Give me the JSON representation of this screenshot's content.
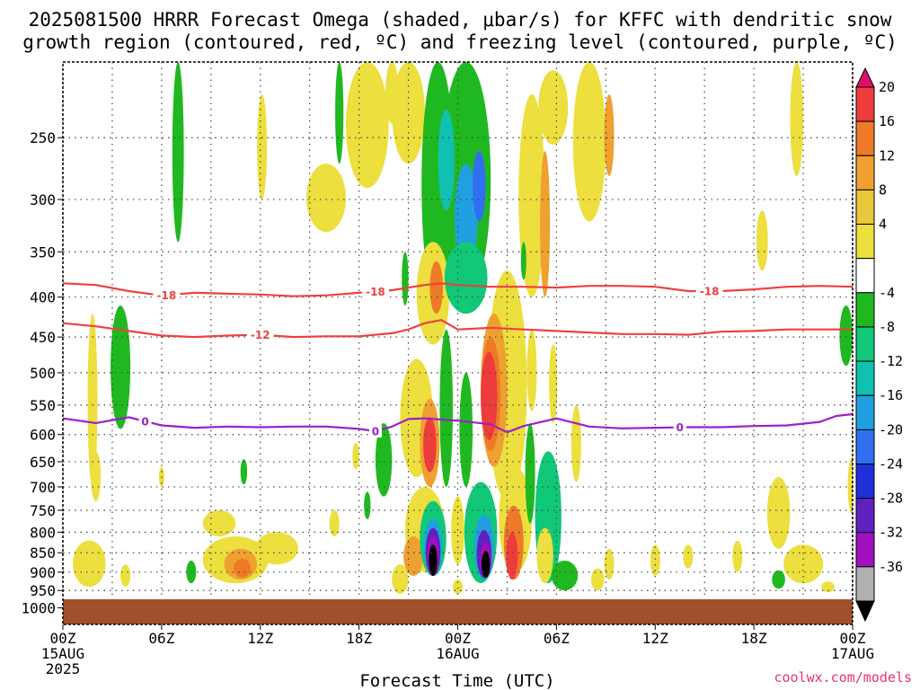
{
  "title": {
    "line1": "2025081500 HRRR Forecast Omega (shaded, μbar/s) for KFFC with dendritic snow",
    "line2": "growth region (contoured, red, ºC) and freezing level (contoured, purple, ºC)"
  },
  "credit": "coolwx.com/models",
  "chart_data": {
    "type": "heatmap",
    "xlabel": "Forecast Time (UTC)",
    "ylabel": "",
    "x_unit": "hours from 2025-08-15 00Z",
    "xlim": [
      0,
      48
    ],
    "y_scale": "log",
    "ylim": [
      1050,
      200
    ],
    "y_ticks": [
      250,
      300,
      350,
      400,
      450,
      500,
      550,
      600,
      650,
      700,
      750,
      800,
      850,
      900,
      950,
      1000
    ],
    "x_ticks": [
      {
        "x": 0,
        "lines": [
          "00Z",
          "15AUG",
          "2025"
        ]
      },
      {
        "x": 6,
        "lines": [
          "06Z"
        ]
      },
      {
        "x": 12,
        "lines": [
          "12Z"
        ]
      },
      {
        "x": 18,
        "lines": [
          "18Z"
        ]
      },
      {
        "x": 24,
        "lines": [
          "00Z",
          "16AUG"
        ]
      },
      {
        "x": 30,
        "lines": [
          "06Z"
        ]
      },
      {
        "x": 36,
        "lines": [
          "12Z"
        ]
      },
      {
        "x": 42,
        "lines": [
          "18Z"
        ]
      },
      {
        "x": 48,
        "lines": [
          "00Z",
          "17AUG"
        ]
      }
    ],
    "grid": true,
    "colorbar": {
      "labels": [
        "20",
        "16",
        "12",
        "8",
        "4",
        "-4",
        "-8",
        "-12",
        "-16",
        "-20",
        "-24",
        "-28",
        "-32",
        "-36"
      ],
      "colors": [
        "#e0106a",
        "#ee3c3c",
        "#ee7a28",
        "#eea030",
        "#e8c83a",
        "#ecdf3e",
        "#ffffff",
        "#20b820",
        "#10c878",
        "#10c0b0",
        "#20a0e0",
        "#3070f0",
        "#2030d8",
        "#6020c0",
        "#a010c0",
        "#b0b0b0",
        "#000000"
      ]
    },
    "ground": {
      "pressure_top": 975,
      "color": "#a0502a"
    },
    "omega_patches": [
      {
        "x": 7.0,
        "p": 270,
        "rx": 0.35,
        "rp": 70,
        "value": -6
      },
      {
        "x": 12.1,
        "p": 260,
        "rx": 0.3,
        "rp": 40,
        "value": 5
      },
      {
        "x": 16.8,
        "p": 230,
        "rx": 0.25,
        "rp": 40,
        "value": -6
      },
      {
        "x": 16.0,
        "p": 300,
        "rx": 1.2,
        "rp": 30,
        "value": 5
      },
      {
        "x": 18.5,
        "p": 230,
        "rx": 1.3,
        "rp": 60,
        "value": 5
      },
      {
        "x": 21.0,
        "p": 230,
        "rx": 1.0,
        "rp": 40,
        "value": 5
      },
      {
        "x": 20.0,
        "p": 215,
        "rx": 0.4,
        "rp": 25,
        "value": 7
      },
      {
        "x": 22.8,
        "p": 300,
        "rx": 1.0,
        "rp": 110,
        "value": -7
      },
      {
        "x": 24.5,
        "p": 300,
        "rx": 1.5,
        "rp": 100,
        "value": -7
      },
      {
        "x": 23.3,
        "p": 270,
        "rx": 0.5,
        "rp": 40,
        "value": -14
      },
      {
        "x": 24.5,
        "p": 320,
        "rx": 0.7,
        "rp": 50,
        "value": -16
      },
      {
        "x": 25.3,
        "p": 290,
        "rx": 0.4,
        "rp": 30,
        "value": -21
      },
      {
        "x": 28.5,
        "p": 310,
        "rx": 0.8,
        "rp": 90,
        "value": 6
      },
      {
        "x": 29.3,
        "p": 330,
        "rx": 0.3,
        "rp": 70,
        "value": 10
      },
      {
        "x": 32.0,
        "p": 260,
        "rx": 1.0,
        "rp": 60,
        "value": 5
      },
      {
        "x": 33.2,
        "p": 250,
        "rx": 0.3,
        "rp": 30,
        "value": 9
      },
      {
        "x": 29.8,
        "p": 230,
        "rx": 0.9,
        "rp": 25,
        "value": 5
      },
      {
        "x": 42.5,
        "p": 340,
        "rx": 0.35,
        "rp": 30,
        "value": 5
      },
      {
        "x": 44.6,
        "p": 240,
        "rx": 0.4,
        "rp": 40,
        "value": 5
      },
      {
        "x": 28.0,
        "p": 360,
        "rx": 0.15,
        "rp": 20,
        "value": -6
      },
      {
        "x": 20.8,
        "p": 380,
        "rx": 0.2,
        "rp": 30,
        "value": -7
      },
      {
        "x": 22.5,
        "p": 400,
        "rx": 1.0,
        "rp": 60,
        "value": 6
      },
      {
        "x": 22.7,
        "p": 390,
        "rx": 0.4,
        "rp": 30,
        "value": 12
      },
      {
        "x": 24.5,
        "p": 380,
        "rx": 1.3,
        "rp": 40,
        "value": -8
      },
      {
        "x": 3.5,
        "p": 500,
        "rx": 0.6,
        "rp": 90,
        "value": -7
      },
      {
        "x": 1.8,
        "p": 560,
        "rx": 0.3,
        "rp": 140,
        "value": 5
      },
      {
        "x": 47.6,
        "p": 450,
        "rx": 0.4,
        "rp": 40,
        "value": -6
      },
      {
        "x": 48.0,
        "p": 700,
        "rx": 0.3,
        "rp": 60,
        "value": 5
      },
      {
        "x": 27.0,
        "p": 550,
        "rx": 1.2,
        "rp": 180,
        "value": 6
      },
      {
        "x": 26.2,
        "p": 540,
        "rx": 0.8,
        "rp": 120,
        "value": 10
      },
      {
        "x": 26.0,
        "p": 540,
        "rx": 0.6,
        "rp": 90,
        "value": 15
      },
      {
        "x": 25.9,
        "p": 540,
        "rx": 0.5,
        "rp": 70,
        "value": 19
      },
      {
        "x": 28.5,
        "p": 500,
        "rx": 0.3,
        "rp": 60,
        "value": 5
      },
      {
        "x": 21.5,
        "p": 580,
        "rx": 1.0,
        "rp": 100,
        "value": 6
      },
      {
        "x": 22.3,
        "p": 620,
        "rx": 0.6,
        "rp": 80,
        "value": 11
      },
      {
        "x": 22.3,
        "p": 620,
        "rx": 0.4,
        "rp": 50,
        "value": 18
      },
      {
        "x": 23.3,
        "p": 570,
        "rx": 0.4,
        "rp": 130,
        "value": -7
      },
      {
        "x": 24.5,
        "p": 600,
        "rx": 0.4,
        "rp": 100,
        "value": -7
      },
      {
        "x": 19.5,
        "p": 650,
        "rx": 0.5,
        "rp": 70,
        "value": -6
      },
      {
        "x": 17.8,
        "p": 640,
        "rx": 0.2,
        "rp": 25,
        "value": 5
      },
      {
        "x": 11.0,
        "p": 670,
        "rx": 0.2,
        "rp": 25,
        "value": -6
      },
      {
        "x": 6.0,
        "p": 680,
        "rx": 0.15,
        "rp": 20,
        "value": 5
      },
      {
        "x": 2.0,
        "p": 680,
        "rx": 0.3,
        "rp": 50,
        "value": 5
      },
      {
        "x": 18.5,
        "p": 740,
        "rx": 0.2,
        "rp": 30,
        "value": -6
      },
      {
        "x": 22.0,
        "p": 800,
        "rx": 1.2,
        "rp": 100,
        "value": 6
      },
      {
        "x": 21.3,
        "p": 860,
        "rx": 0.6,
        "rp": 50,
        "value": 10
      },
      {
        "x": 22.5,
        "p": 820,
        "rx": 0.8,
        "rp": 90,
        "value": -8
      },
      {
        "x": 22.5,
        "p": 840,
        "rx": 0.55,
        "rp": 70,
        "value": -18
      },
      {
        "x": 22.5,
        "p": 850,
        "rx": 0.45,
        "rp": 60,
        "value": -26
      },
      {
        "x": 22.5,
        "p": 860,
        "rx": 0.35,
        "rp": 50,
        "value": -30
      },
      {
        "x": 22.5,
        "p": 870,
        "rx": 0.25,
        "rp": 40,
        "value": -38
      },
      {
        "x": 24.0,
        "p": 800,
        "rx": 0.4,
        "rp": 80,
        "value": 6
      },
      {
        "x": 25.4,
        "p": 810,
        "rx": 1.0,
        "rp": 120,
        "value": -8
      },
      {
        "x": 25.6,
        "p": 840,
        "rx": 0.6,
        "rp": 80,
        "value": -16
      },
      {
        "x": 25.6,
        "p": 855,
        "rx": 0.45,
        "rp": 60,
        "value": -24
      },
      {
        "x": 25.7,
        "p": 870,
        "rx": 0.35,
        "rp": 45,
        "value": -31
      },
      {
        "x": 25.7,
        "p": 880,
        "rx": 0.25,
        "rp": 35,
        "value": -38
      },
      {
        "x": 27.5,
        "p": 780,
        "rx": 1.0,
        "rp": 120,
        "value": 7
      },
      {
        "x": 27.4,
        "p": 830,
        "rx": 0.6,
        "rp": 90,
        "value": 13
      },
      {
        "x": 27.3,
        "p": 860,
        "rx": 0.35,
        "rp": 60,
        "value": 19
      },
      {
        "x": 28.4,
        "p": 680,
        "rx": 0.3,
        "rp": 100,
        "value": -6
      },
      {
        "x": 29.5,
        "p": 780,
        "rx": 0.8,
        "rp": 150,
        "value": -8
      },
      {
        "x": 29.3,
        "p": 860,
        "rx": 0.5,
        "rp": 70,
        "value": 6
      },
      {
        "x": 10.5,
        "p": 870,
        "rx": 2.0,
        "rp": 60,
        "value": 5
      },
      {
        "x": 10.8,
        "p": 880,
        "rx": 1.0,
        "rp": 40,
        "value": 9
      },
      {
        "x": 10.9,
        "p": 890,
        "rx": 0.5,
        "rp": 25,
        "value": 13
      },
      {
        "x": 13.0,
        "p": 840,
        "rx": 1.3,
        "rp": 40,
        "value": 5
      },
      {
        "x": 9.5,
        "p": 780,
        "rx": 1.0,
        "rp": 30,
        "value": 5
      },
      {
        "x": 1.6,
        "p": 880,
        "rx": 1.0,
        "rp": 60,
        "value": 5
      },
      {
        "x": 3.8,
        "p": 910,
        "rx": 0.3,
        "rp": 30,
        "value": 5
      },
      {
        "x": 7.8,
        "p": 900,
        "rx": 0.3,
        "rp": 30,
        "value": -6
      },
      {
        "x": 16.5,
        "p": 780,
        "rx": 0.3,
        "rp": 30,
        "value": 5
      },
      {
        "x": 33.2,
        "p": 880,
        "rx": 0.3,
        "rp": 40,
        "value": 5
      },
      {
        "x": 36.0,
        "p": 870,
        "rx": 0.3,
        "rp": 40,
        "value": 5
      },
      {
        "x": 38.0,
        "p": 860,
        "rx": 0.3,
        "rp": 30,
        "value": 5
      },
      {
        "x": 41.0,
        "p": 860,
        "rx": 0.3,
        "rp": 40,
        "value": 5
      },
      {
        "x": 43.5,
        "p": 760,
        "rx": 0.7,
        "rp": 80,
        "value": 5
      },
      {
        "x": 45.0,
        "p": 880,
        "rx": 1.2,
        "rp": 50,
        "value": 5
      },
      {
        "x": 43.5,
        "p": 920,
        "rx": 0.4,
        "rp": 25,
        "value": -6
      },
      {
        "x": 46.5,
        "p": 940,
        "rx": 0.4,
        "rp": 15,
        "value": 5
      },
      {
        "x": 32.5,
        "p": 920,
        "rx": 0.4,
        "rp": 30,
        "value": 5
      },
      {
        "x": 20.5,
        "p": 920,
        "rx": 0.5,
        "rp": 40,
        "value": 5
      },
      {
        "x": 24.0,
        "p": 940,
        "rx": 0.3,
        "rp": 20,
        "value": 5
      },
      {
        "x": 30.5,
        "p": 910,
        "rx": 0.8,
        "rp": 40,
        "value": -7
      },
      {
        "x": 31.2,
        "p": 620,
        "rx": 0.3,
        "rp": 70,
        "value": 5
      },
      {
        "x": 29.8,
        "p": 520,
        "rx": 0.25,
        "rp": 60,
        "value": 5
      }
    ],
    "contours": [
      {
        "name": "-18",
        "color": "#ee4040",
        "label": "-18",
        "x": [
          0,
          2,
          4,
          6,
          8,
          10,
          12,
          14,
          16,
          18,
          20,
          22,
          23,
          24,
          26,
          28,
          30,
          32,
          34,
          36,
          38,
          40,
          42,
          44,
          46,
          48
        ],
        "p": [
          384,
          386,
          393,
          398,
          395,
          396,
          397,
          399,
          398,
          395,
          392,
          386,
          384,
          386,
          388,
          388,
          389,
          387,
          387,
          388,
          393,
          393,
          391,
          388,
          387,
          388
        ],
        "label_x": [
          6.3,
          19.0,
          39.3
        ]
      },
      {
        "name": "-12",
        "color": "#ee4040",
        "label": "-12",
        "x": [
          0,
          2,
          4,
          6,
          8,
          10,
          12,
          14,
          16,
          18,
          20,
          21,
          22,
          23,
          24,
          26,
          28,
          30,
          32,
          34,
          36,
          38,
          40,
          42,
          44,
          46,
          48
        ],
        "p": [
          432,
          436,
          442,
          448,
          450,
          448,
          447,
          450,
          449,
          449,
          445,
          440,
          432,
          428,
          440,
          438,
          440,
          442,
          444,
          446,
          446,
          447,
          443,
          442,
          440,
          440,
          440
        ],
        "label_x": [
          12.0
        ]
      },
      {
        "name": "0",
        "color": "#9b20c8",
        "label": "0",
        "x": [
          0,
          2,
          3,
          4,
          6,
          8,
          10,
          12,
          14,
          16,
          18,
          19,
          20,
          21,
          22,
          24,
          26,
          27,
          28,
          30,
          32,
          34,
          36,
          38,
          40,
          42,
          44,
          46,
          47,
          48
        ],
        "p": [
          572,
          580,
          575,
          570,
          584,
          588,
          586,
          587,
          586,
          586,
          590,
          594,
          586,
          573,
          572,
          576,
          582,
          596,
          585,
          572,
          586,
          589,
          588,
          587,
          587,
          585,
          584,
          578,
          568,
          565
        ],
        "label_x": [
          5.0,
          19.0,
          37.5
        ]
      }
    ]
  }
}
